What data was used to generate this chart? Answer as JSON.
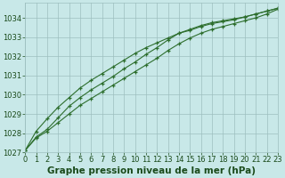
{
  "xlabel": "Graphe pression niveau de la mer (hPa)",
  "x": [
    0,
    1,
    2,
    3,
    4,
    5,
    6,
    7,
    8,
    9,
    10,
    11,
    12,
    13,
    14,
    15,
    16,
    17,
    18,
    19,
    20,
    21,
    22,
    23
  ],
  "line1": [
    1027.1,
    1027.8,
    1028.2,
    1028.8,
    1029.4,
    1029.85,
    1030.25,
    1030.6,
    1030.95,
    1031.35,
    1031.7,
    1032.1,
    1032.45,
    1032.85,
    1033.2,
    1033.4,
    1033.6,
    1033.75,
    1033.85,
    1033.95,
    1034.05,
    1034.2,
    1034.35,
    1034.5
  ],
  "line2": [
    1027.1,
    1028.1,
    1028.75,
    1029.35,
    1029.85,
    1030.35,
    1030.75,
    1031.1,
    1031.45,
    1031.8,
    1032.15,
    1032.45,
    1032.7,
    1032.95,
    1033.2,
    1033.35,
    1033.55,
    1033.7,
    1033.8,
    1033.9,
    1034.05,
    1034.2,
    1034.35,
    1034.5
  ],
  "line3": [
    1027.1,
    1027.75,
    1028.1,
    1028.55,
    1029.0,
    1029.45,
    1029.8,
    1030.15,
    1030.5,
    1030.85,
    1031.2,
    1031.55,
    1031.9,
    1032.3,
    1032.65,
    1032.95,
    1033.2,
    1033.4,
    1033.55,
    1033.7,
    1033.85,
    1034.0,
    1034.2,
    1034.45
  ],
  "line_color": "#2d6e2d",
  "marker": "+",
  "background_color": "#c8e8e8",
  "grid_color": "#9dbfbf",
  "ylim": [
    1027,
    1034.8
  ],
  "yticks": [
    1027,
    1028,
    1029,
    1030,
    1031,
    1032,
    1033,
    1034
  ],
  "xlim": [
    0,
    23
  ],
  "xticks": [
    0,
    1,
    2,
    3,
    4,
    5,
    6,
    7,
    8,
    9,
    10,
    11,
    12,
    13,
    14,
    15,
    16,
    17,
    18,
    19,
    20,
    21,
    22,
    23
  ],
  "xlabel_fontsize": 7.5,
  "tick_fontsize": 6,
  "label_color": "#1a4a1a",
  "xlabel_bold": true
}
